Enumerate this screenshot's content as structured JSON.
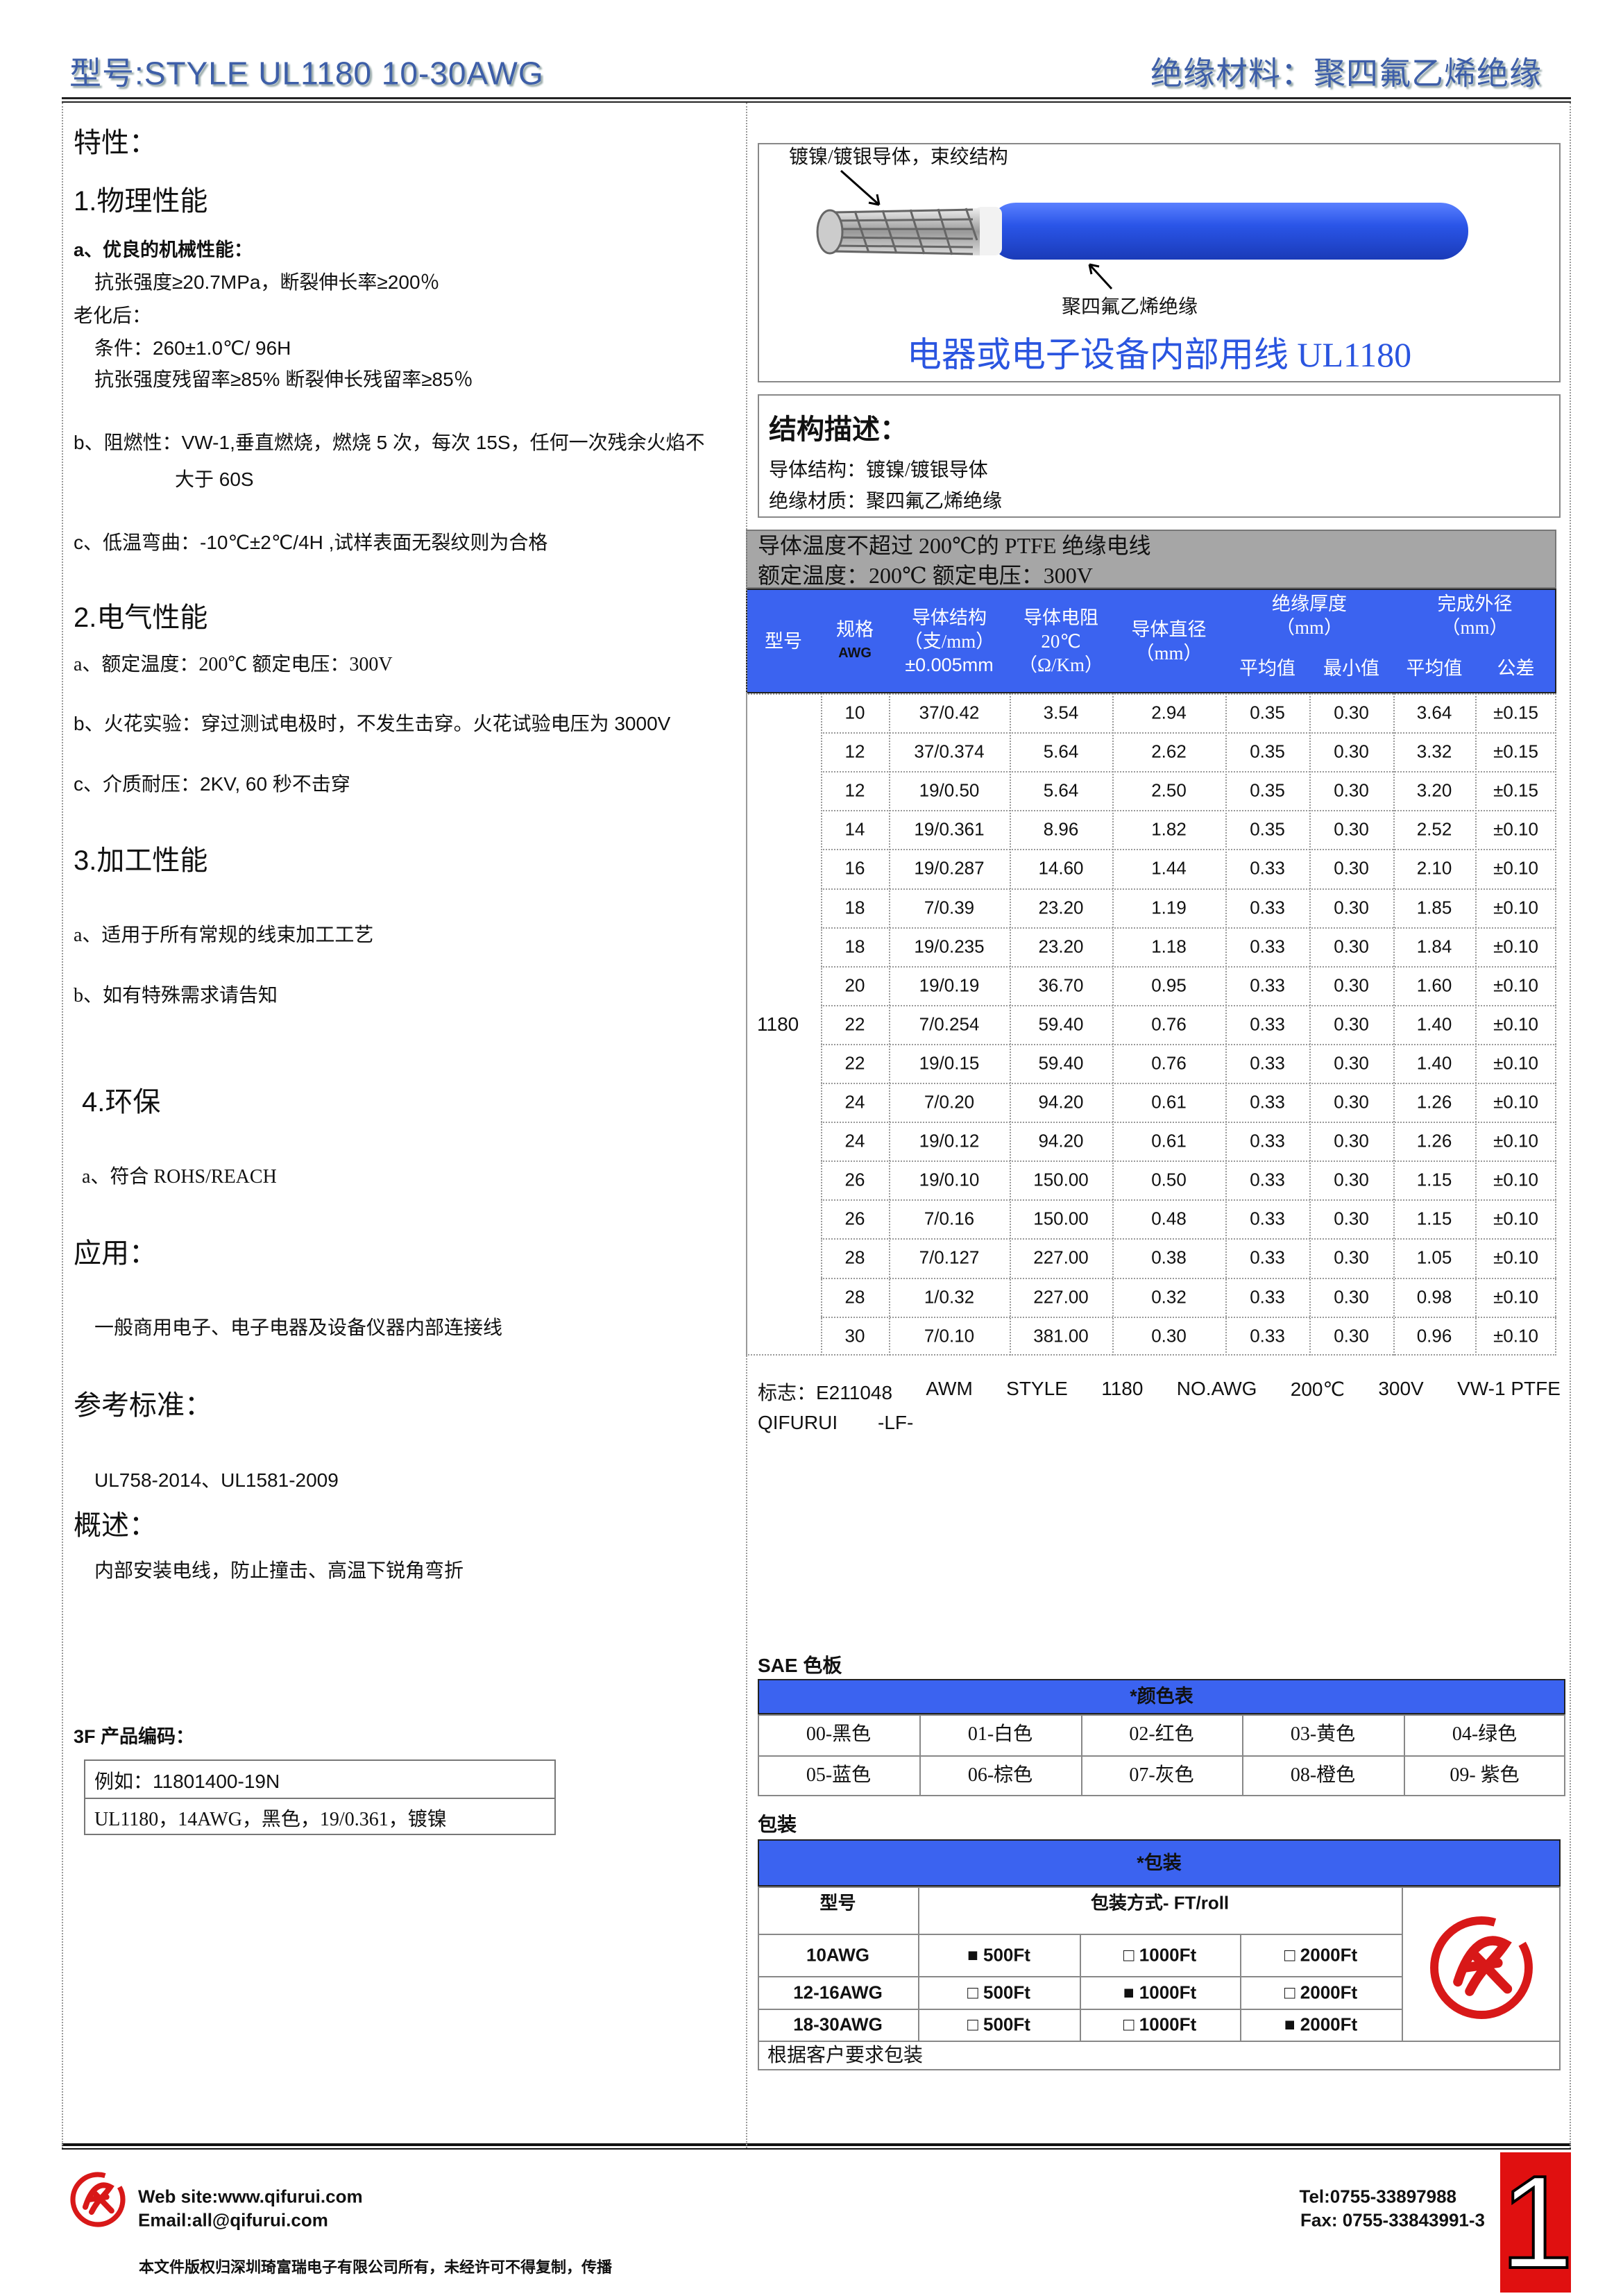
{
  "header": {
    "model": "型号:STYLE UL1180 10-30AWG",
    "material": "绝缘材料：聚四氟乙烯绝缘"
  },
  "features": {
    "title": "特性：",
    "physical": {
      "heading": "1.物理性能",
      "lines": [
        "a、优良的机械性能：",
        "抗张强度≥20.7MPa，断裂伸长率≥200％",
        "老化后：",
        "条件：260±1.0℃/ 96H",
        "抗张强度残留率≥85%  断裂伸长残留率≥85％",
        "b、阻燃性：VW-1,垂直燃烧，燃烧 5 次，每次 15S，任何一次残余火焰不",
        "大于 60S",
        "c、低温弯曲：-10℃±2℃/4H ,试样表面无裂纹则为合格"
      ]
    },
    "electrical": {
      "heading": "2.电气性能",
      "lines": [
        "a、额定温度：200℃   额定电压：300V",
        "b、火花实验：穿过测试电极时，不发生击穿。火花试验电压为 3000V",
        "c、介质耐压：2KV, 60 秒不击穿"
      ]
    },
    "processing": {
      "heading": "3.加工性能",
      "lines": [
        "a、适用于所有常规的线束加工工艺",
        "b、如有特殊需求请告知"
      ]
    },
    "environment": {
      "heading": "4.环保",
      "lines": [
        "a、符合 ROHS/REACH"
      ]
    }
  },
  "application": {
    "title": "应用：",
    "text": "一般商用电子、电子电器及设备仪器内部连接线"
  },
  "standards": {
    "title": "参考标准：",
    "text": "UL758-2014、UL1581-2009"
  },
  "overview": {
    "title": "概述：",
    "text": "内部安装电线，防止撞击、高温下锐角弯折"
  },
  "product_code": {
    "title": "3F 产品编码：",
    "example": "例如：11801400-19N",
    "description": "UL1180，14AWG，黑色，19/0.361，镀镍"
  },
  "diagram": {
    "conductor_label": "镀镍/镀银导体，束绞结构",
    "insulation_label": "聚四氟乙烯绝缘",
    "caption": "电器或电子设备内部用线 UL1180"
  },
  "structure": {
    "title": "结构描述：",
    "conductor": "导体结构：镀镍/镀银导体",
    "insulation": "绝缘材质：聚四氟乙烯绝缘"
  },
  "rating": [
    "导体温度不超过 200℃的 PTFE 绝缘电线",
    "额定温度：200℃  额定电压：300V"
  ],
  "spec_table": {
    "headers": {
      "model": "型号",
      "awg": [
        "规格",
        "AWG"
      ],
      "structure": [
        "导体结构",
        "（支/mm）",
        "±0.005mm"
      ],
      "resistance": [
        "导体电阻",
        "20℃",
        "（Ω/Km）"
      ],
      "diameter": [
        "导体直径",
        "（mm）"
      ],
      "insulation": [
        "绝缘厚度",
        "（mm）"
      ],
      "outer": [
        "完成外径",
        "（mm）"
      ],
      "sub": [
        "平均值",
        "最小值",
        "平均值",
        "公差"
      ]
    },
    "model": "1180",
    "rows": [
      [
        "10",
        "37/0.42",
        "3.54",
        "2.94",
        "0.35",
        "0.30",
        "3.64",
        "±0.15"
      ],
      [
        "12",
        "37/0.374",
        "5.64",
        "2.62",
        "0.35",
        "0.30",
        "3.32",
        "±0.15"
      ],
      [
        "12",
        "19/0.50",
        "5.64",
        "2.50",
        "0.35",
        "0.30",
        "3.20",
        "±0.15"
      ],
      [
        "14",
        "19/0.361",
        "8.96",
        "1.82",
        "0.35",
        "0.30",
        "2.52",
        "±0.10"
      ],
      [
        "16",
        "19/0.287",
        "14.60",
        "1.44",
        "0.33",
        "0.30",
        "2.10",
        "±0.10"
      ],
      [
        "18",
        "7/0.39",
        "23.20",
        "1.19",
        "0.33",
        "0.30",
        "1.85",
        "±0.10"
      ],
      [
        "18",
        "19/0.235",
        "23.20",
        "1.18",
        "0.33",
        "0.30",
        "1.84",
        "±0.10"
      ],
      [
        "20",
        "19/0.19",
        "36.70",
        "0.95",
        "0.33",
        "0.30",
        "1.60",
        "±0.10"
      ],
      [
        "22",
        "7/0.254",
        "59.40",
        "0.76",
        "0.33",
        "0.30",
        "1.40",
        "±0.10"
      ],
      [
        "22",
        "19/0.15",
        "59.40",
        "0.76",
        "0.33",
        "0.30",
        "1.40",
        "±0.10"
      ],
      [
        "24",
        "7/0.20",
        "94.20",
        "0.61",
        "0.33",
        "0.30",
        "1.26",
        "±0.10"
      ],
      [
        "24",
        "19/0.12",
        "94.20",
        "0.61",
        "0.33",
        "0.30",
        "1.26",
        "±0.10"
      ],
      [
        "26",
        "19/0.10",
        "150.00",
        "0.50",
        "0.33",
        "0.30",
        "1.15",
        "±0.10"
      ],
      [
        "26",
        "7/0.16",
        "150.00",
        "0.48",
        "0.33",
        "0.30",
        "1.15",
        "±0.10"
      ],
      [
        "28",
        "7/0.127",
        "227.00",
        "0.38",
        "0.33",
        "0.30",
        "1.05",
        "±0.10"
      ],
      [
        "28",
        "1/0.32",
        "227.00",
        "0.32",
        "0.33",
        "0.30",
        "0.98",
        "±0.10"
      ],
      [
        "30",
        "7/0.10",
        "381.00",
        "0.30",
        "0.33",
        "0.30",
        "0.96",
        "±0.10"
      ]
    ]
  },
  "marking": {
    "label": "标志：E211048",
    "line1": [
      "AWM",
      "STYLE",
      "1180",
      "NO.AWG",
      "200℃",
      "300V",
      "VW-1 PTFE"
    ],
    "line2": [
      "QIFURUI",
      "-LF-"
    ]
  },
  "color_chart": {
    "title": "SAE 色板",
    "header": "*颜色表",
    "colors": [
      [
        "00-黑色",
        "01-白色",
        "02-红色",
        "03-黄色",
        "04-绿色"
      ],
      [
        "05-蓝色",
        "06-棕色",
        "07-灰色",
        "08-橙色",
        "09- 紫色"
      ]
    ]
  },
  "packaging": {
    "title": "包装",
    "header": "*包装",
    "col_model": "型号",
    "col_method": "包装方式- FT/roll",
    "rows": [
      {
        "model": "10AWG",
        "options": [
          "■ 500Ft",
          "□ 1000Ft",
          "□ 2000Ft"
        ]
      },
      {
        "model": "12-16AWG",
        "options": [
          "□ 500Ft",
          "■ 1000Ft",
          "□ 2000Ft"
        ]
      },
      {
        "model": "18-30AWG",
        "options": [
          "□ 500Ft",
          "□ 1000Ft",
          "■ 2000Ft"
        ]
      }
    ],
    "note": "根据客户要求包装"
  },
  "footer": {
    "website": "Web site:www.qifurui.com",
    "email": "Email:all@qifurui.com",
    "tel": "Tel:0755-33897988",
    "fax": "Fax: 0755-33843991-3",
    "page": "1",
    "copyright": "本文件版权归深圳琦富瑞电子有限公司所有，未经许可不得复制，传播"
  }
}
